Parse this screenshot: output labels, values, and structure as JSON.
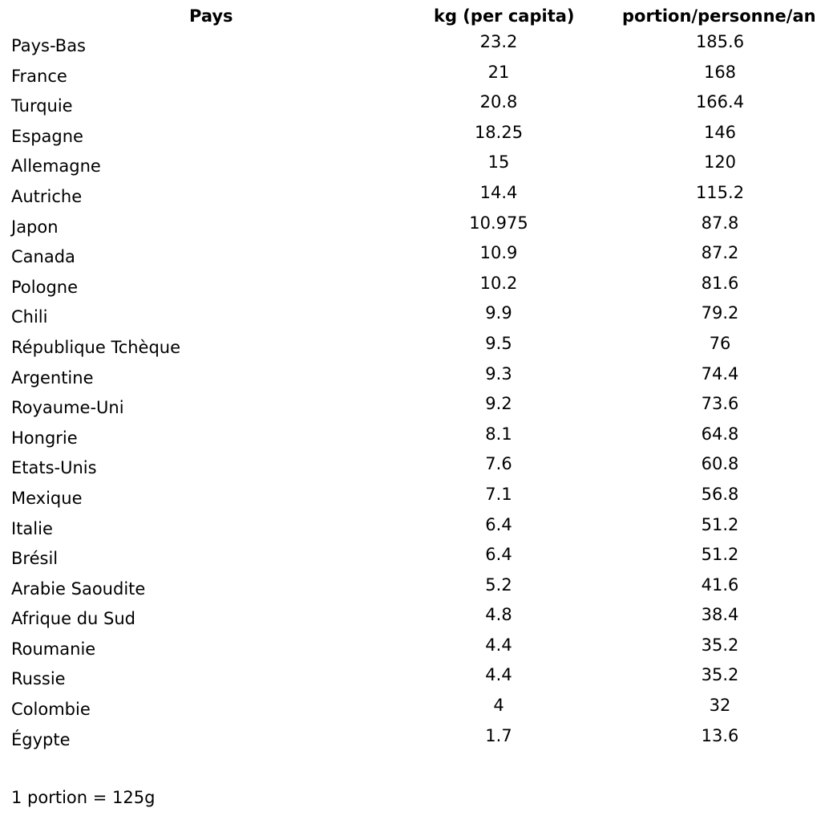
{
  "headers": {
    "country": "Pays",
    "kg": "kg (per capita)",
    "portion": "portion/personne/an"
  },
  "rows": [
    {
      "country": "Pays-Bas",
      "kg": "23.2",
      "portion": "185.6"
    },
    {
      "country": "France",
      "kg": "21",
      "portion": "168"
    },
    {
      "country": "Turquie",
      "kg": "20.8",
      "portion": "166.4"
    },
    {
      "country": "Espagne",
      "kg": "18.25",
      "portion": "146"
    },
    {
      "country": "Allemagne",
      "kg": "15",
      "portion": "120"
    },
    {
      "country": "Autriche",
      "kg": "14.4",
      "portion": "115.2"
    },
    {
      "country": "Japon",
      "kg": "10.975",
      "portion": "87.8"
    },
    {
      "country": "Canada",
      "kg": "10.9",
      "portion": "87.2"
    },
    {
      "country": "Pologne",
      "kg": "10.2",
      "portion": "81.6"
    },
    {
      "country": "Chili",
      "kg": "9.9",
      "portion": "79.2"
    },
    {
      "country": "République Tchèque",
      "kg": "9.5",
      "portion": "76"
    },
    {
      "country": "Argentine",
      "kg": "9.3",
      "portion": "74.4"
    },
    {
      "country": "Royaume-Uni",
      "kg": "9.2",
      "portion": "73.6"
    },
    {
      "country": "Hongrie",
      "kg": "8.1",
      "portion": "64.8"
    },
    {
      "country": "Etats-Unis",
      "kg": "7.6",
      "portion": "60.8"
    },
    {
      "country": "Mexique",
      "kg": "7.1",
      "portion": "56.8"
    },
    {
      "country": "Italie",
      "kg": "6.4",
      "portion": "51.2"
    },
    {
      "country": "Brésil",
      "kg": "6.4",
      "portion": "51.2"
    },
    {
      "country": "Arabie Saoudite",
      "kg": "5.2",
      "portion": "41.6"
    },
    {
      "country": "Afrique du Sud",
      "kg": "4.8",
      "portion": "38.4"
    },
    {
      "country": "Roumanie",
      "kg": "4.4",
      "portion": "35.2"
    },
    {
      "country": "Russie",
      "kg": "4.4",
      "portion": "35.2"
    },
    {
      "country": "Colombie",
      "kg": "4",
      "portion": "32"
    },
    {
      "country": "Égypte",
      "kg": "1.7",
      "portion": "13.6"
    }
  ],
  "footnote": "1 portion = 125g"
}
